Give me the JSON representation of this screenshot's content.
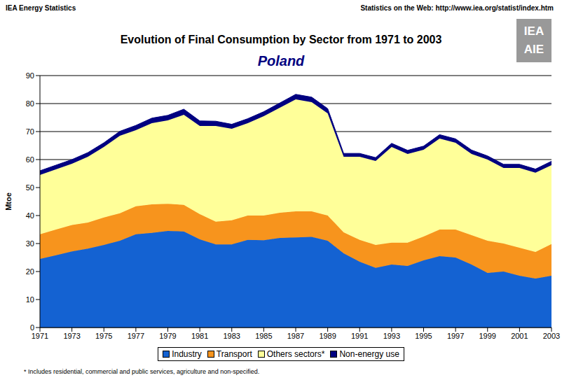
{
  "header_left": "IEA Energy Statistics",
  "header_right": "Statistics on the Web: http://www.iea.org/statist/index.htm",
  "logo": [
    "IEA",
    "AIE"
  ],
  "footnote": "* Includes residential, commercial and public services, agriculture and non-specified.",
  "chart_data": {
    "type": "area",
    "title": "Evolution of Final Consumption by Sector from 1971 to 2003",
    "subtitle": "Poland",
    "y_label": "Mtoe",
    "stacked": true,
    "grid": true,
    "legend": "bottom",
    "x": [
      1971,
      1972,
      1973,
      1974,
      1975,
      1976,
      1977,
      1978,
      1979,
      1980,
      1981,
      1982,
      1983,
      1984,
      1985,
      1986,
      1987,
      1988,
      1989,
      1990,
      1991,
      1992,
      1993,
      1994,
      1995,
      1996,
      1997,
      1998,
      1999,
      2000,
      2001,
      2002,
      2003
    ],
    "xlim": [
      1971,
      2003
    ],
    "xticks": [
      1971,
      1973,
      1975,
      1977,
      1979,
      1981,
      1983,
      1985,
      1987,
      1989,
      1991,
      1993,
      1995,
      1997,
      1999,
      2001,
      2003
    ],
    "ylim": [
      0,
      90
    ],
    "yticks": [
      0,
      10,
      20,
      30,
      40,
      50,
      60,
      70,
      80,
      90
    ],
    "series": [
      {
        "name": "Industry",
        "color": "#1462d2",
        "values": [
          24.5,
          25.8,
          27.2,
          28.2,
          29.5,
          31,
          33.3,
          33.8,
          34.5,
          34.3,
          31.5,
          29.7,
          29.7,
          31.3,
          31.2,
          32,
          32.2,
          32.4,
          31,
          26.5,
          23.5,
          21.3,
          22.5,
          22,
          24,
          25.5,
          25,
          22.5,
          19.5,
          20,
          18.5,
          17.5,
          18.5
        ]
      },
      {
        "name": "Transport",
        "color": "#f7941d",
        "values": [
          8.8,
          9.2,
          9.4,
          9.3,
          9.8,
          9.8,
          10,
          10.2,
          9.7,
          9.5,
          9,
          8.1,
          8.6,
          8.7,
          8.8,
          9,
          9.3,
          9.1,
          9,
          7.5,
          7.8,
          8.2,
          7.8,
          8.3,
          8.5,
          9.5,
          10,
          10.5,
          11.5,
          10,
          10,
          9.5,
          11.3
        ]
      },
      {
        "name": "Others sectors*",
        "color": "#ffff99",
        "values": [
          21.2,
          21.5,
          21.9,
          23.5,
          25.2,
          27.7,
          27.2,
          29,
          29.8,
          32.2,
          31.5,
          34.2,
          32.7,
          33,
          35.5,
          37.5,
          40,
          39,
          36.5,
          27,
          29.7,
          30,
          34.2,
          31.7,
          31,
          32.5,
          31,
          29,
          29,
          27,
          28.5,
          28.3,
          28.2
        ]
      },
      {
        "name": "Non-energy use",
        "color": "#000080",
        "values": [
          1.5,
          1.5,
          1.5,
          1.5,
          1.5,
          1.6,
          1.7,
          1.8,
          1.8,
          2,
          1.8,
          1.7,
          1.6,
          1.6,
          1.6,
          1.7,
          1.8,
          1.8,
          1.7,
          1.2,
          1.2,
          1.2,
          1.3,
          1.3,
          1.3,
          1.4,
          1.4,
          1.4,
          1.3,
          1.3,
          1.3,
          1.3,
          1.4
        ]
      }
    ]
  }
}
